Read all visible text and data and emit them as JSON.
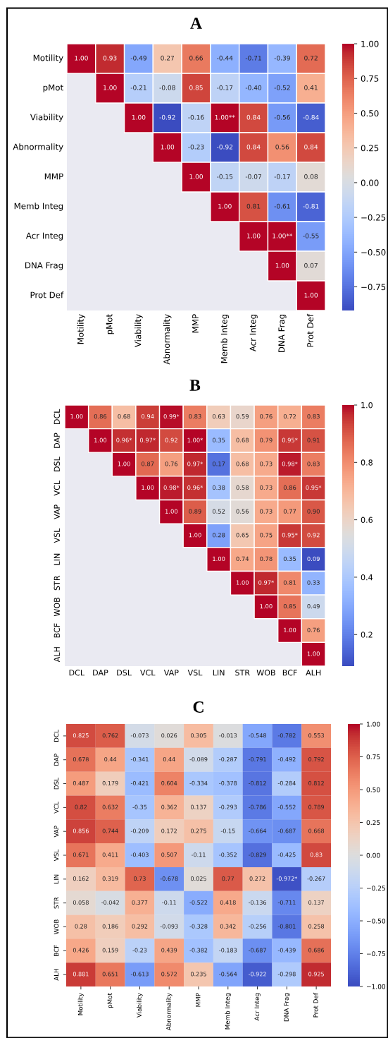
{
  "chart_data": [
    {
      "type": "heatmap",
      "title": "A",
      "categories": [
        "Motility",
        "pMot",
        "Viability",
        "Abnormality",
        "MMP",
        "Memb Integ",
        "Acr Integ",
        "DNA Frag",
        "Prot Def"
      ],
      "y_categories": [
        "Motility",
        "pMot",
        "Viability",
        "Abnormality",
        "MMP",
        "Memb Integ",
        "Acr Integ",
        "DNA Frag",
        "Prot Def"
      ],
      "cells": [
        [
          1.0,
          0.93,
          -0.49,
          0.27,
          0.66,
          -0.44,
          -0.71,
          -0.39,
          0.72
        ],
        [
          null,
          1.0,
          -0.21,
          -0.08,
          0.85,
          -0.17,
          -0.4,
          -0.52,
          0.41
        ],
        [
          null,
          null,
          1.0,
          -0.92,
          -0.16,
          1.0,
          0.84,
          -0.56,
          -0.84
        ],
        [
          null,
          null,
          null,
          1.0,
          -0.23,
          -0.92,
          0.84,
          0.56,
          0.84
        ],
        [
          null,
          null,
          null,
          null,
          1.0,
          -0.15,
          -0.07,
          -0.17,
          0.08
        ],
        [
          null,
          null,
          null,
          null,
          null,
          1.0,
          0.81,
          -0.61,
          -0.81
        ],
        [
          null,
          null,
          null,
          null,
          null,
          null,
          1.0,
          1.0,
          -0.55
        ],
        [
          null,
          null,
          null,
          null,
          null,
          null,
          null,
          1.0,
          0.07
        ],
        [
          null,
          null,
          null,
          null,
          null,
          null,
          null,
          null,
          1.0
        ]
      ],
      "cell_labels": [
        [
          "1.00",
          "0.93",
          "-0.49",
          "0.27",
          "0.66",
          "-0.44",
          "-0.71",
          "-0.39",
          "0.72"
        ],
        [
          null,
          "1.00",
          "-0.21",
          "-0.08",
          "0.85",
          "-0.17",
          "-0.40",
          "-0.52",
          "0.41"
        ],
        [
          null,
          null,
          "1.00",
          "-0.92",
          "-0.16",
          "1.00**",
          "0.84",
          "-0.56",
          "-0.84"
        ],
        [
          null,
          null,
          null,
          "1.00",
          "-0.23",
          "-0.92",
          "0.84",
          "0.56",
          "0.84"
        ],
        [
          null,
          null,
          null,
          null,
          "1.00",
          "-0.15",
          "-0.07",
          "-0.17",
          "0.08"
        ],
        [
          null,
          null,
          null,
          null,
          null,
          "1.00",
          "0.81",
          "-0.61",
          "-0.81"
        ],
        [
          null,
          null,
          null,
          null,
          null,
          null,
          "1.00",
          "1.00**",
          "-0.55"
        ],
        [
          null,
          null,
          null,
          null,
          null,
          null,
          null,
          "1.00",
          "0.07"
        ],
        [
          null,
          null,
          null,
          null,
          null,
          null,
          null,
          null,
          "1.00"
        ]
      ],
      "clim": [
        -0.92,
        1.0
      ],
      "cticks": [
        {
          "value": 1.0,
          "label": "1.00"
        },
        {
          "value": 0.75,
          "label": "0.75"
        },
        {
          "value": 0.5,
          "label": "0.50"
        },
        {
          "value": 0.25,
          "label": "0.25"
        },
        {
          "value": 0.0,
          "label": "0.00"
        },
        {
          "value": -0.25,
          "label": "−0.25"
        },
        {
          "value": -0.5,
          "label": "−0.50"
        },
        {
          "value": -0.75,
          "label": "−0.75"
        }
      ]
    },
    {
      "type": "heatmap",
      "title": "B",
      "categories": [
        "DCL",
        "DAP",
        "DSL",
        "VCL",
        "VAP",
        "VSL",
        "LIN",
        "STR",
        "WOB",
        "BCF",
        "ALH"
      ],
      "y_categories": [
        "DCL",
        "DAP",
        "DSL",
        "VCL",
        "VAP",
        "VSL",
        "LIN",
        "STR",
        "WOB",
        "BCF",
        "ALH"
      ],
      "cells": [
        [
          1.0,
          0.86,
          0.68,
          0.94,
          0.99,
          0.83,
          0.63,
          0.59,
          0.76,
          0.72,
          0.83
        ],
        [
          null,
          1.0,
          0.96,
          0.97,
          0.92,
          1.0,
          0.35,
          0.68,
          0.79,
          0.95,
          0.91
        ],
        [
          null,
          null,
          1.0,
          0.87,
          0.76,
          0.97,
          0.17,
          0.68,
          0.73,
          0.98,
          0.83
        ],
        [
          null,
          null,
          null,
          1.0,
          0.98,
          0.96,
          0.38,
          0.58,
          0.73,
          0.86,
          0.95
        ],
        [
          null,
          null,
          null,
          null,
          1.0,
          0.89,
          0.52,
          0.56,
          0.73,
          0.77,
          0.9
        ],
        [
          null,
          null,
          null,
          null,
          null,
          1.0,
          0.28,
          0.65,
          0.75,
          0.95,
          0.92
        ],
        [
          null,
          null,
          null,
          null,
          null,
          null,
          1.0,
          0.74,
          0.78,
          0.35,
          0.09
        ],
        [
          null,
          null,
          null,
          null,
          null,
          null,
          null,
          1.0,
          0.97,
          0.81,
          0.33
        ],
        [
          null,
          null,
          null,
          null,
          null,
          null,
          null,
          null,
          1.0,
          0.85,
          0.49
        ],
        [
          null,
          null,
          null,
          null,
          null,
          null,
          null,
          null,
          null,
          1.0,
          0.76
        ],
        [
          null,
          null,
          null,
          null,
          null,
          null,
          null,
          null,
          null,
          null,
          1.0
        ]
      ],
      "cell_labels": [
        [
          "1.00",
          "0.86",
          "0.68",
          "0.94",
          "0.99*",
          "0.83",
          "0.63",
          "0.59",
          "0.76",
          "0.72",
          "0.83"
        ],
        [
          null,
          "1.00",
          "0.96*",
          "0.97*",
          "0.92",
          "1.00*",
          "0.35",
          "0.68",
          "0.79",
          "0.95*",
          "0.91"
        ],
        [
          null,
          null,
          "1.00",
          "0.87",
          "0.76",
          "0.97*",
          "0.17",
          "0.68",
          "0.73",
          "0.98*",
          "0.83"
        ],
        [
          null,
          null,
          null,
          "1.00",
          "0.98*",
          "0.96*",
          "0.38",
          "0.58",
          "0.73",
          "0.86",
          "0.95*"
        ],
        [
          null,
          null,
          null,
          null,
          "1.00",
          "0.89",
          "0.52",
          "0.56",
          "0.73",
          "0.77",
          "0.90"
        ],
        [
          null,
          null,
          null,
          null,
          null,
          "1.00",
          "0.28",
          "0.65",
          "0.75",
          "0.95*",
          "0.92"
        ],
        [
          null,
          null,
          null,
          null,
          null,
          null,
          "1.00",
          "0.74",
          "0.78",
          "0.35",
          "0.09"
        ],
        [
          null,
          null,
          null,
          null,
          null,
          null,
          null,
          "1.00",
          "0.97*",
          "0.81",
          "0.33"
        ],
        [
          null,
          null,
          null,
          null,
          null,
          null,
          null,
          null,
          "1.00",
          "0.85",
          "0.49"
        ],
        [
          null,
          null,
          null,
          null,
          null,
          null,
          null,
          null,
          null,
          "1.00",
          "0.76"
        ],
        [
          null,
          null,
          null,
          null,
          null,
          null,
          null,
          null,
          null,
          null,
          "1.00"
        ]
      ],
      "clim": [
        0.09,
        1.0
      ],
      "cticks": [
        {
          "value": 1.0,
          "label": "1.0"
        },
        {
          "value": 0.8,
          "label": "0.8"
        },
        {
          "value": 0.6,
          "label": "0.6"
        },
        {
          "value": 0.4,
          "label": "0.4"
        },
        {
          "value": 0.2,
          "label": "0.2"
        }
      ]
    },
    {
      "type": "heatmap",
      "title": "C",
      "categories": [
        "Motility",
        "pMot",
        "Viability",
        "Abnormality",
        "MMP",
        "Memb Integ",
        "Acr Integ",
        "DNA Frag",
        "Prot Def"
      ],
      "y_categories": [
        "DCL",
        "DAP",
        "DSL",
        "VCL",
        "VAP",
        "VSL",
        "LIN",
        "STR",
        "WOB",
        "BCF",
        "ALH"
      ],
      "cells": [
        [
          0.825,
          0.762,
          -0.073,
          0.026,
          0.305,
          -0.013,
          -0.548,
          -0.782,
          0.553
        ],
        [
          0.678,
          0.44,
          -0.341,
          0.44,
          -0.089,
          -0.287,
          -0.791,
          -0.492,
          0.792
        ],
        [
          0.487,
          0.179,
          -0.421,
          0.604,
          -0.334,
          -0.378,
          -0.812,
          -0.284,
          0.812
        ],
        [
          0.82,
          0.632,
          -0.35,
          0.362,
          0.137,
          -0.293,
          -0.786,
          -0.552,
          0.789
        ],
        [
          0.856,
          0.744,
          -0.209,
          0.172,
          0.275,
          -0.15,
          -0.664,
          -0.687,
          0.668
        ],
        [
          0.671,
          0.411,
          -0.403,
          0.507,
          -0.11,
          -0.352,
          -0.829,
          -0.425,
          0.83
        ],
        [
          0.162,
          0.319,
          0.73,
          -0.678,
          0.025,
          0.77,
          0.272,
          -0.972,
          -0.267
        ],
        [
          0.058,
          -0.042,
          0.377,
          -0.11,
          -0.522,
          0.418,
          -0.136,
          -0.711,
          0.137
        ],
        [
          0.28,
          0.186,
          0.292,
          -0.093,
          -0.328,
          0.342,
          -0.256,
          -0.801,
          0.258
        ],
        [
          0.426,
          0.159,
          -0.23,
          0.439,
          -0.382,
          -0.183,
          -0.687,
          -0.439,
          0.686
        ],
        [
          0.881,
          0.651,
          -0.613,
          0.572,
          0.235,
          -0.564,
          -0.922,
          -0.298,
          0.925
        ]
      ],
      "cell_labels": [
        [
          "0.825",
          "0.762",
          "-0.073",
          "0.026",
          "0.305",
          "-0.013",
          "-0.548",
          "-0.782",
          "0.553"
        ],
        [
          "0.678",
          "0.44",
          "-0.341",
          "0.44",
          "-0.089",
          "-0.287",
          "-0.791",
          "-0.492",
          "0.792"
        ],
        [
          "0.487",
          "0.179",
          "-0.421",
          "0.604",
          "-0.334",
          "-0.378",
          "-0.812",
          "-0.284",
          "0.812"
        ],
        [
          "0.82",
          "0.632",
          "-0.35",
          "0.362",
          "0.137",
          "-0.293",
          "-0.786",
          "-0.552",
          "0.789"
        ],
        [
          "0.856",
          "0.744",
          "-0.209",
          "0.172",
          "0.275",
          "-0.15",
          "-0.664",
          "-0.687",
          "0.668"
        ],
        [
          "0.671",
          "0.411",
          "-0.403",
          "0.507",
          "-0.11",
          "-0.352",
          "-0.829",
          "-0.425",
          "0.83"
        ],
        [
          "0.162",
          "0.319",
          "0.73",
          "-0.678",
          "0.025",
          "0.77",
          "0.272",
          "-0.972*",
          "-0.267"
        ],
        [
          "0.058",
          "-0.042",
          "0.377",
          "-0.11",
          "-0.522",
          "0.418",
          "-0.136",
          "-0.711",
          "0.137"
        ],
        [
          "0.28",
          "0.186",
          "0.292",
          "-0.093",
          "-0.328",
          "0.342",
          "-0.256",
          "-0.801",
          "0.258"
        ],
        [
          "0.426",
          "0.159",
          "-0.23",
          "0.439",
          "-0.382",
          "-0.183",
          "-0.687",
          "-0.439",
          "0.686"
        ],
        [
          "0.881",
          "0.651",
          "-0.613",
          "0.572",
          "0.235",
          "-0.564",
          "-0.922",
          "-0.298",
          "0.925"
        ]
      ],
      "clim": [
        -1.0,
        1.0
      ],
      "cticks": [
        {
          "value": 1.0,
          "label": "1.00"
        },
        {
          "value": 0.75,
          "label": "0.75"
        },
        {
          "value": 0.5,
          "label": "0.50"
        },
        {
          "value": 0.25,
          "label": "0.25"
        },
        {
          "value": 0.0,
          "label": "0.00"
        },
        {
          "value": -0.25,
          "label": "−0.25"
        },
        {
          "value": -0.5,
          "label": "−0.50"
        },
        {
          "value": -0.75,
          "label": "−0.75"
        },
        {
          "value": -1.0,
          "label": "−1.00"
        }
      ]
    }
  ]
}
